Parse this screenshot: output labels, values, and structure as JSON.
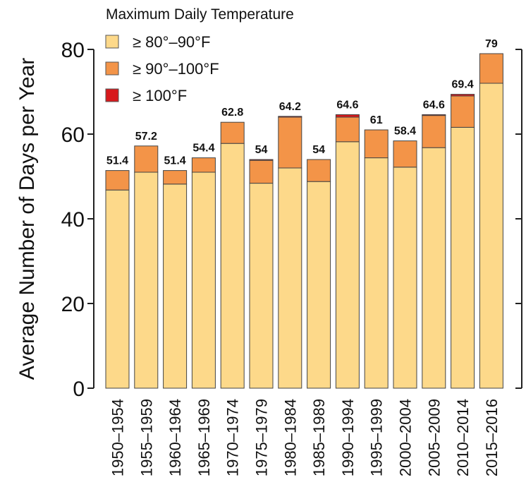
{
  "chart_data": {
    "type": "stacked-bar",
    "legend_title": "Maximum Daily Temperature",
    "y_label": "Average Number of Days per Year",
    "categories": [
      "1950–1954",
      "1955–1959",
      "1960–1964",
      "1965–1969",
      "1970–1974",
      "1975–1979",
      "1980–1984",
      "1985–1989",
      "1990–1994",
      "1995–1999",
      "2000–2004",
      "2005–2009",
      "2010–2014",
      "2015–2016"
    ],
    "series": [
      {
        "name": "≥ 80°–90°F",
        "color": "#fdd98a",
        "values": [
          46.8,
          51,
          48.2,
          51,
          57.8,
          48.4,
          52,
          48.8,
          58.2,
          54.4,
          52.2,
          56.8,
          61.6,
          72
        ]
      },
      {
        "name": "≥ 90°–100°F",
        "color": "#f39448",
        "values": [
          4.6,
          6.2,
          3.2,
          3.4,
          5,
          5.4,
          12,
          5.2,
          5.8,
          6.6,
          6.2,
          7.6,
          7.4,
          7
        ]
      },
      {
        "name": "≥ 100°F",
        "color": "#d7191c",
        "values": [
          0,
          0,
          0,
          0,
          0,
          0.2,
          0.2,
          0,
          0.6,
          0,
          0,
          0.2,
          0.4,
          0
        ]
      }
    ],
    "totals": [
      51.4,
      57.2,
      51.4,
      54.4,
      62.8,
      54,
      64.2,
      54,
      64.6,
      61,
      58.4,
      64.6,
      69.4,
      79
    ],
    "ylim": [
      0,
      80
    ],
    "yticks": [
      0,
      20,
      40,
      60,
      80
    ]
  }
}
